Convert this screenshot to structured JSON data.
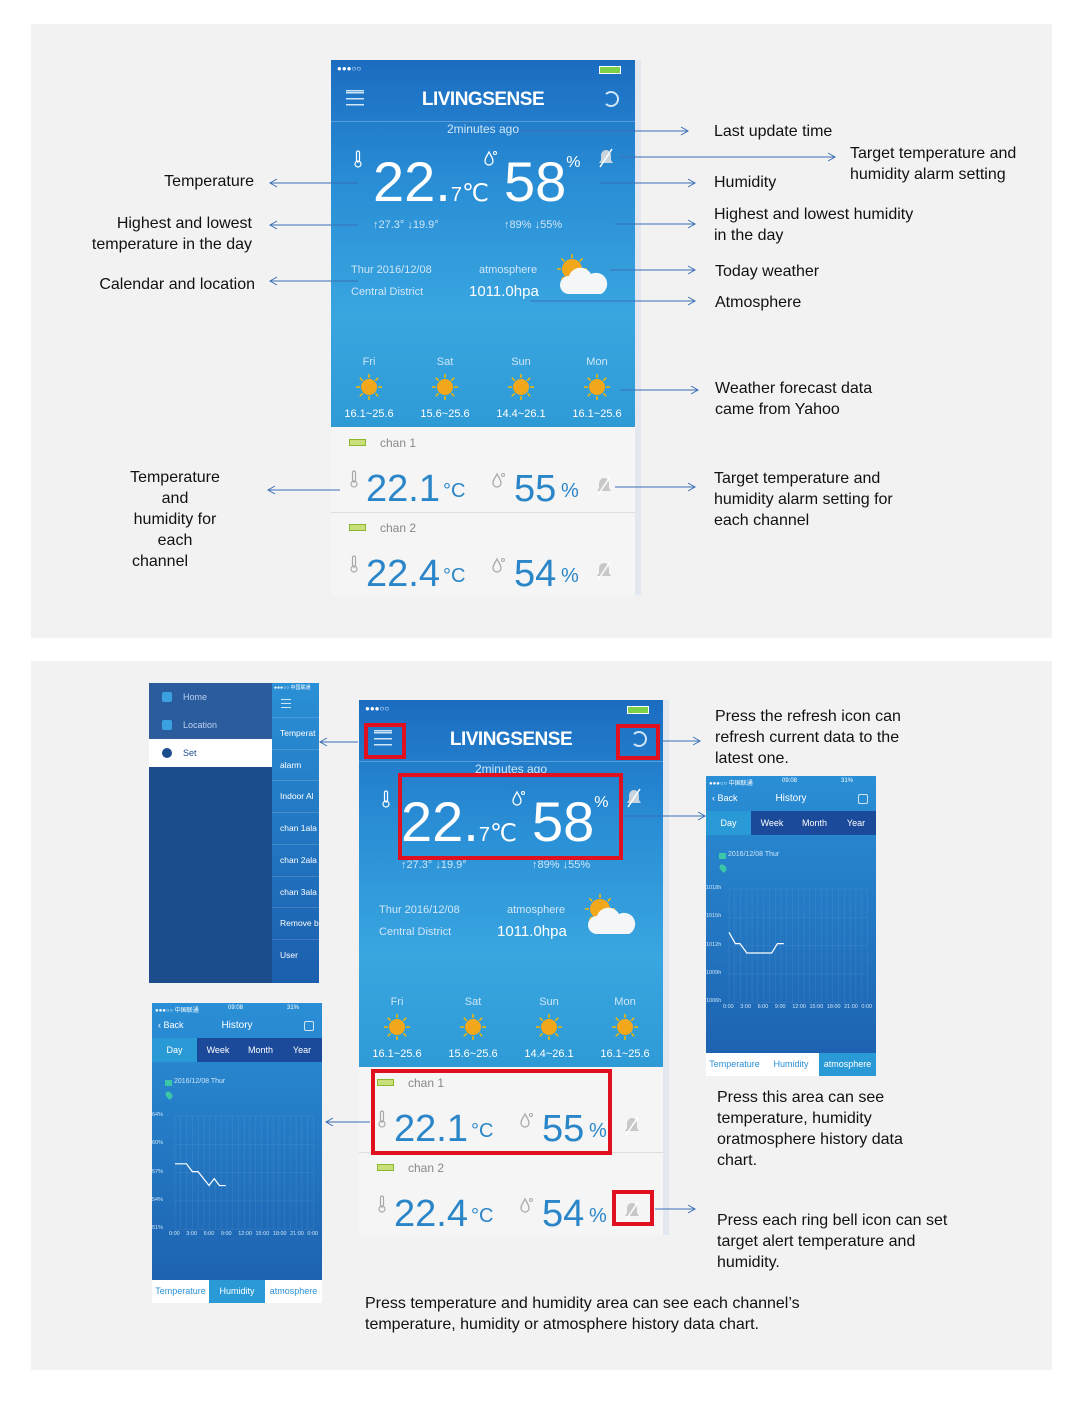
{
  "colors": {
    "accent": "#2a86c8",
    "sky": "#2a8fd6",
    "highlight": "#e0101e",
    "arrow": "#3a6fb7",
    "battery": "#8ab82c"
  },
  "phone": {
    "status_signal": "●●●○○",
    "title": "LIVINGSENSE",
    "last_update": "2minutes ago",
    "temp_int": "22.",
    "temp_dec": "7",
    "temp_unit": "℃",
    "humidity": "58",
    "humidity_unit": "%",
    "temp_high": "↑27.3°",
    "temp_low": "↓19.9°",
    "hum_high": "↑89%",
    "hum_low": "↓55%",
    "date": "Thur 2016/12/08",
    "location": "Central District",
    "atmosphere_label": "atmosphere",
    "atmosphere_value": "1011.0hpa",
    "today_weather_icon": "partly-cloudy-icon",
    "forecast": [
      {
        "day": "Fri",
        "range": "16.1~25.6",
        "icon": "sun-icon"
      },
      {
        "day": "Sat",
        "range": "15.6~25.6",
        "icon": "sun-icon"
      },
      {
        "day": "Sun",
        "range": "14.4~26.1",
        "icon": "sun-icon"
      },
      {
        "day": "Mon",
        "range": "16.1~25.6",
        "icon": "sun-icon"
      }
    ],
    "channels": [
      {
        "name": "chan 1",
        "temp": "22.1",
        "temp_unit": "°C",
        "humidity": "55",
        "humidity_unit": "%"
      },
      {
        "name": "chan 2",
        "temp": "22.4",
        "temp_unit": "°C",
        "humidity": "54",
        "humidity_unit": "%"
      }
    ]
  },
  "annotations_top": {
    "temperature": "Temperature",
    "hilo_temp": [
      "Highest and lowest",
      "temperature in the day"
    ],
    "calendar": "Calendar and location",
    "channel": [
      "Temperature and",
      "humidity for each",
      "channel"
    ],
    "last_update": "Last update time",
    "target_alarm": [
      "Target temperature and",
      "humidity alarm setting"
    ],
    "humidity": "Humidity",
    "hilo_hum": [
      "Highest and lowest humidity",
      "in the day"
    ],
    "today_weather": "Today weather",
    "atmosphere": "Atmosphere",
    "forecast": [
      "Weather forecast data",
      "came from Yahoo"
    ],
    "channel_alarm": [
      "Target temperature and",
      "humidity alarm setting for",
      "each channel"
    ]
  },
  "annotations_bottom": {
    "refresh": [
      "Press the refresh icon can",
      "refresh current data to the",
      "latest one."
    ],
    "history": [
      "Press this area can see",
      "temperature, humidity",
      "oratmosphere history data",
      "chart."
    ],
    "bell": [
      "Press each ring bell  icon can set",
      "target alert temperature and",
      "humidity."
    ],
    "caption": [
      "Press temperature and humidity area can see each channel’s",
      "temperature, humidity or atmosphere history data chart."
    ]
  },
  "sidebar": {
    "status": "●●●○○ 中国联通",
    "menu": [
      {
        "label": "Home",
        "icon": "home-icon"
      },
      {
        "label": "Location",
        "icon": "location-pin-icon"
      },
      {
        "label": "Set",
        "icon": "gear-icon",
        "selected": true
      }
    ],
    "settings": [
      "Temperat",
      "alarm",
      "Indoor Al",
      "chan 1ala",
      "chan 2ala",
      "chan 3ala",
      "Remove b",
      "User"
    ]
  },
  "history_left": {
    "status_left": "●●●○○ 中国联通 ",
    "time": "09:08",
    "status_right": "31%",
    "back": "Back",
    "title": "History",
    "tabs": [
      "Day",
      "Week",
      "Month",
      "Year"
    ],
    "date": "2016/12/08 Thur",
    "bottom_tabs": [
      "Temperature",
      "Humidity",
      "atmosphere"
    ],
    "selected_bottom": 1,
    "chart_data": {
      "type": "line",
      "y_ticks": [
        "64%",
        "60%",
        "57%",
        "54%",
        "51%"
      ],
      "ylim": [
        51,
        64
      ],
      "x_ticks": [
        "0:00",
        "3:00",
        "6:00",
        "9:00",
        "12:00",
        "15:00",
        "18:00",
        "21:00",
        "0:00"
      ],
      "points": [
        [
          0,
          58.5
        ],
        [
          2,
          58.5
        ],
        [
          3,
          57.6
        ],
        [
          4,
          57.6
        ],
        [
          5.9,
          56
        ],
        [
          6.8,
          56.8
        ],
        [
          7.7,
          56
        ],
        [
          8.8,
          56
        ]
      ]
    }
  },
  "history_right": {
    "status_left": "●●●○○ 中国联通 ",
    "time": "09:08",
    "status_right": "31%",
    "back": "Back",
    "title": "History",
    "tabs": [
      "Day",
      "Week",
      "Month",
      "Year"
    ],
    "date": "2016/12/08 Thur",
    "bottom_tabs": [
      "Temperature",
      "Humidity",
      "atmosphere"
    ],
    "selected_bottom": 2,
    "chart_data": {
      "type": "line",
      "y_ticks": [
        "1018h",
        "1015h",
        "1012h",
        "1009h",
        "1006h"
      ],
      "ylim": [
        1006,
        1018
      ],
      "x_ticks": [
        "0:00",
        "3:00",
        "6:00",
        "9:00",
        "12:00",
        "15:00",
        "18:00",
        "21:00",
        "0:00"
      ],
      "points": [
        [
          0,
          1013.4
        ],
        [
          1.1,
          1012.2
        ],
        [
          1.9,
          1012.2
        ],
        [
          3.1,
          1011.2
        ],
        [
          7.4,
          1011.2
        ],
        [
          8.4,
          1012.2
        ],
        [
          9.5,
          1012.2
        ]
      ]
    }
  }
}
